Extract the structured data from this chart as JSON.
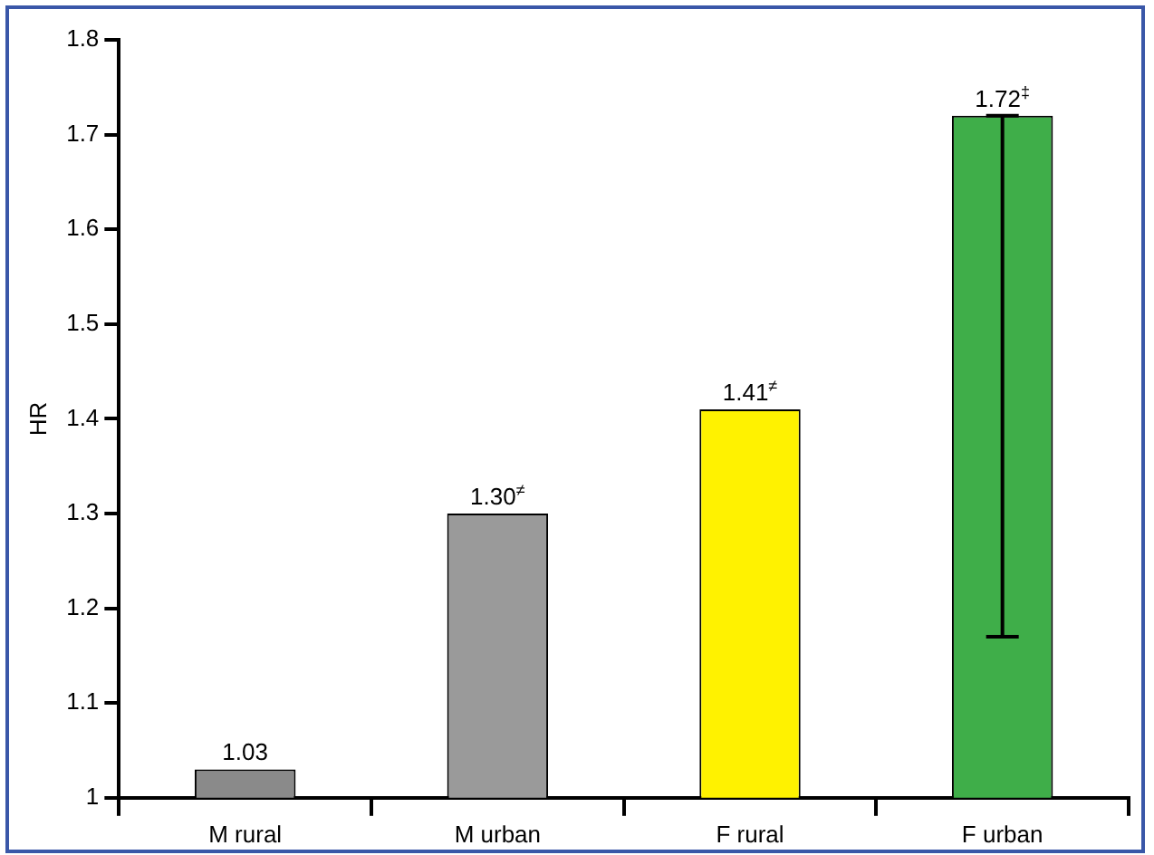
{
  "chart_data": {
    "type": "bar",
    "ylabel": "HR",
    "categories": [
      "M rural",
      "M urban",
      "F rural",
      "F urban"
    ],
    "values": [
      1.03,
      1.3,
      1.41,
      1.72
    ],
    "colors": [
      "#8a8a8a",
      "#9a9a9a",
      "#fff200",
      "#3fae49"
    ],
    "errors": [
      null,
      null,
      null,
      [
        1.17,
        1.72
      ]
    ],
    "value_labels": [
      "1.03",
      "1.30$^{≠}$",
      "1.41$^{≠}$",
      "1.72$^{‡}$"
    ],
    "ylim": [
      1,
      1.8
    ],
    "yticks": [
      1,
      1.1,
      1.2,
      1.3,
      1.4,
      1.5,
      1.6,
      1.7,
      1.8
    ],
    "grid": false,
    "legend": false
  }
}
